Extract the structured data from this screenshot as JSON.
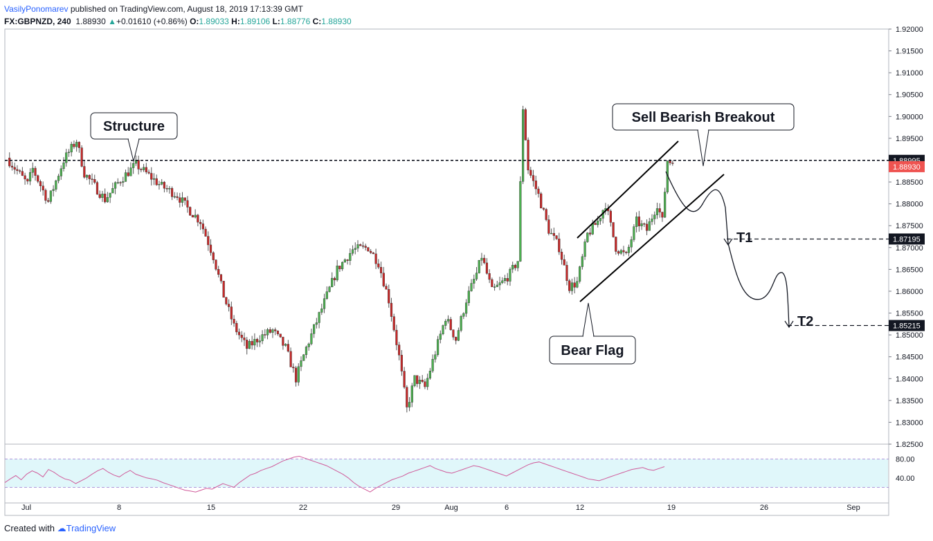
{
  "header": {
    "author": "VasilyPonomarev",
    "published": "published on TradingView.com, August 18, 2019 17:13:39 GMT",
    "symbol": "FX:GBPNZD, 240",
    "last": "1.88930",
    "change": "+0.01610 (+0.86%)",
    "o_label": "O:",
    "o": "1.89033",
    "h_label": "H:",
    "h": "1.89106",
    "l_label": "L:",
    "l": "1.88776",
    "c_label": "C:",
    "c": "1.88930"
  },
  "footer": {
    "created_with": "Created with",
    "brand": "TradingView"
  },
  "colors": {
    "up": "#26a69a",
    "down": "#ef5350",
    "candle_up": "#4caf50",
    "candle_down": "#c62828",
    "rsi": "#d05a9a",
    "rsi_band": "#e0f7fa",
    "price_tag": "#ef5350"
  },
  "chart_data": {
    "type": "candlestick",
    "symbol": "FX:GBPNZD",
    "interval": "240",
    "y_ticks": [
      "1.92000",
      "1.91500",
      "1.91000",
      "1.90500",
      "1.90000",
      "1.89500",
      "1.89000",
      "1.88500",
      "1.88000",
      "1.87500",
      "1.87000",
      "1.86500",
      "1.86000",
      "1.85500",
      "1.85000",
      "1.84500",
      "1.84000",
      "1.83500",
      "1.83000",
      "1.82500"
    ],
    "ylim": [
      1.825,
      1.92
    ],
    "x_ticks": [
      "Jul",
      "8",
      "15",
      "22",
      "29",
      "Aug",
      "6",
      "12",
      "19",
      "26",
      "Sep"
    ],
    "price_levels": [
      {
        "value": 1.88995,
        "label": "1.88995",
        "style": "dashed"
      },
      {
        "value": 1.8893,
        "label": "1.88930",
        "style": "current"
      },
      {
        "value": 1.87195,
        "label": "1.87195",
        "style": "dashed"
      },
      {
        "value": 1.85215,
        "label": "1.85215",
        "style": "dashed"
      }
    ],
    "annotations": [
      "Structure",
      "Sell Bearish Breakout",
      "Bear Flag",
      "T1",
      "T2"
    ],
    "anchors": [
      [
        0,
        1.8905
      ],
      [
        8,
        1.8845
      ],
      [
        10,
        1.888
      ],
      [
        16,
        1.8805
      ],
      [
        22,
        1.89
      ],
      [
        27,
        1.8945
      ],
      [
        30,
        1.887
      ],
      [
        34,
        1.884
      ],
      [
        38,
        1.881
      ],
      [
        44,
        1.8855
      ],
      [
        50,
        1.889
      ],
      [
        54,
        1.887
      ],
      [
        60,
        1.884
      ],
      [
        66,
        1.882
      ],
      [
        70,
        1.879
      ],
      [
        75,
        1.876
      ],
      [
        80,
        1.868
      ],
      [
        84,
        1.859
      ],
      [
        88,
        1.852
      ],
      [
        93,
        1.847
      ],
      [
        98,
        1.8495
      ],
      [
        103,
        1.851
      ],
      [
        108,
        1.847
      ],
      [
        112,
        1.84
      ],
      [
        116,
        1.847
      ],
      [
        120,
        1.853
      ],
      [
        124,
        1.859
      ],
      [
        128,
        1.865
      ],
      [
        134,
        1.8695
      ],
      [
        140,
        1.87
      ],
      [
        144,
        1.8665
      ],
      [
        148,
        1.858
      ],
      [
        152,
        1.845
      ],
      [
        155,
        1.833
      ],
      [
        158,
        1.84
      ],
      [
        162,
        1.838
      ],
      [
        166,
        1.846
      ],
      [
        170,
        1.854
      ],
      [
        174,
        1.849
      ],
      [
        178,
        1.858
      ],
      [
        182,
        1.864
      ],
      [
        184,
        1.868
      ],
      [
        188,
        1.86
      ],
      [
        192,
        1.862
      ],
      [
        195,
        1.864
      ],
      [
        198,
        1.867
      ],
      [
        200,
        1.902
      ],
      [
        202,
        1.888
      ],
      [
        206,
        1.882
      ],
      [
        210,
        1.874
      ],
      [
        214,
        1.87
      ],
      [
        218,
        1.861
      ],
      [
        221,
        1.862
      ],
      [
        225,
        1.873
      ],
      [
        229,
        1.876
      ],
      [
        232,
        1.88
      ],
      [
        236,
        1.87
      ],
      [
        240,
        1.868
      ],
      [
        244,
        1.876
      ],
      [
        248,
        1.874
      ],
      [
        252,
        1.88
      ],
      [
        254,
        1.876
      ],
      [
        256,
        1.89
      ],
      [
        258,
        1.8893
      ]
    ],
    "bars": 258,
    "rsi": {
      "levels": [
        "80.00",
        "40.00"
      ],
      "values": [
        30,
        38,
        45,
        36,
        48,
        55,
        50,
        42,
        58,
        52,
        44,
        38,
        35,
        28,
        34,
        40,
        48,
        55,
        60,
        52,
        46,
        42,
        50,
        56,
        48,
        44,
        40,
        38,
        35,
        30,
        26,
        22,
        18,
        14,
        12,
        10,
        14,
        18,
        16,
        22,
        28,
        24,
        20,
        30,
        38,
        46,
        50,
        56,
        60,
        64,
        70,
        76,
        80,
        84,
        86,
        82,
        78,
        74,
        70,
        66,
        60,
        54,
        48,
        40,
        30,
        22,
        16,
        10,
        18,
        24,
        30,
        36,
        40,
        44,
        50,
        54,
        58,
        62,
        66,
        60,
        56,
        52,
        50,
        54,
        58,
        62,
        66,
        64,
        60,
        56,
        52,
        48,
        44,
        50,
        56,
        62,
        68,
        72,
        74,
        70,
        66,
        62,
        58,
        54,
        50,
        46,
        42,
        38,
        36,
        34,
        38,
        42,
        46,
        50,
        54,
        58,
        60,
        62,
        58,
        56,
        60,
        64
      ]
    }
  }
}
